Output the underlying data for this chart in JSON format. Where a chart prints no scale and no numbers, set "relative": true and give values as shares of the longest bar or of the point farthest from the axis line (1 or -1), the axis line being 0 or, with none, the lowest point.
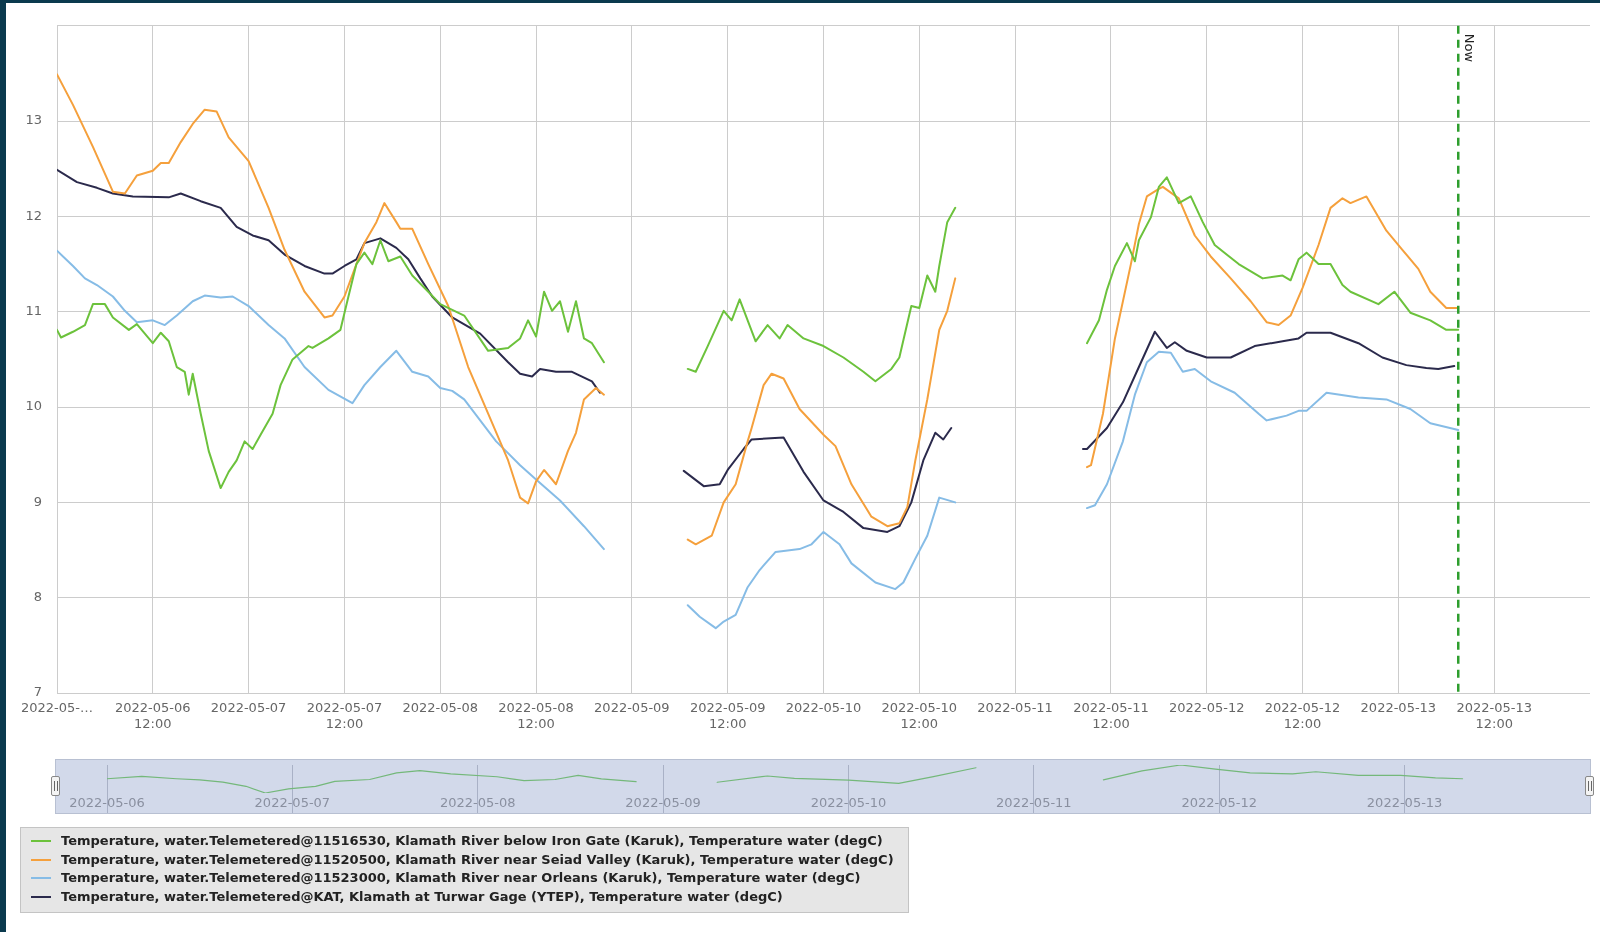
{
  "chart_data": [
    {
      "type": "line",
      "xlim": [
        "2022-05-06T00:00",
        "2022-05-14T00:00"
      ],
      "ylim": [
        7,
        14
      ],
      "xticks": [
        {
          "value": "2022-05-06T00:00",
          "label": "2022-05-…"
        },
        {
          "value": "2022-05-06T12:00",
          "label": "2022-05-06 12:00"
        },
        {
          "value": "2022-05-07T00:00",
          "label": "2022-05-07"
        },
        {
          "value": "2022-05-07T12:00",
          "label": "2022-05-07 12:00"
        },
        {
          "value": "2022-05-08T00:00",
          "label": "2022-05-08"
        },
        {
          "value": "2022-05-08T12:00",
          "label": "2022-05-08 12:00"
        },
        {
          "value": "2022-05-09T00:00",
          "label": "2022-05-09"
        },
        {
          "value": "2022-05-09T12:00",
          "label": "2022-05-09 12:00"
        },
        {
          "value": "2022-05-10T00:00",
          "label": "2022-05-10"
        },
        {
          "value": "2022-05-10T12:00",
          "label": "2022-05-10 12:00"
        },
        {
          "value": "2022-05-11T00:00",
          "label": "2022-05-11"
        },
        {
          "value": "2022-05-11T12:00",
          "label": "2022-05-11 12:00"
        },
        {
          "value": "2022-05-12T00:00",
          "label": "2022-05-12"
        },
        {
          "value": "2022-05-12T12:00",
          "label": "2022-05-12 12:00"
        },
        {
          "value": "2022-05-13T00:00",
          "label": "2022-05-13"
        },
        {
          "value": "2022-05-13T12:00",
          "label": "2022-05-13 12:00"
        }
      ],
      "yticks": [
        7,
        8,
        9,
        10,
        11,
        12,
        13,
        {
          "value": 14,
          "label": null
        }
      ],
      "grid": true,
      "legend": "bottom",
      "ref_lines": [
        {
          "axis": "x",
          "value": "2022-05-13T07:30",
          "label": "Now",
          "color": "#2e9e2e",
          "line_style": "dashed"
        }
      ],
      "series": [
        {
          "name": "Temperature, water.Telemetered@11516530, Klamath River below Iron Gate (Karuk), Temperature water (degC)",
          "color": "#6cc23c",
          "x": [
            "2022-05-06T00:00",
            "2022-05-06T00:30",
            "2022-05-06T02:00",
            "2022-05-06T03:30",
            "2022-05-06T04:30",
            "2022-05-06T06:00",
            "2022-05-06T07:00",
            "2022-05-06T09:00",
            "2022-05-06T10:00",
            "2022-05-06T11:00",
            "2022-05-06T12:00",
            "2022-05-06T13:00",
            "2022-05-06T14:00",
            "2022-05-06T15:00",
            "2022-05-06T16:00",
            "2022-05-06T16:30",
            "2022-05-06T17:00",
            "2022-05-06T18:00",
            "2022-05-06T19:00",
            "2022-05-06T20:30",
            "2022-05-06T21:30",
            "2022-05-06T22:30",
            "2022-05-06T23:30",
            "2022-05-07T00:30",
            "2022-05-07T01:30",
            "2022-05-07T03:00",
            "2022-05-07T04:00",
            "2022-05-07T05:30",
            "2022-05-07T07:30",
            "2022-05-07T08:00",
            "2022-05-07T10:00",
            "2022-05-07T11:30",
            "2022-05-07T12:30",
            "2022-05-07T13:30",
            "2022-05-07T14:30",
            "2022-05-07T15:30",
            "2022-05-07T16:30",
            "2022-05-07T17:30",
            "2022-05-07T19:00",
            "2022-05-07T20:30",
            "2022-05-07T22:30",
            "2022-05-08T00:00",
            "2022-05-08T01:30",
            "2022-05-08T03:00",
            "2022-05-08T06:00",
            "2022-05-08T08:30",
            "2022-05-08T10:00",
            "2022-05-08T11:00",
            "2022-05-08T12:00",
            "2022-05-08T13:00",
            "2022-05-08T14:00",
            "2022-05-08T15:00",
            "2022-05-08T16:00",
            "2022-05-08T17:00",
            "2022-05-08T18:00",
            "2022-05-08T19:00",
            "2022-05-08T20:30",
            "2022-05-09T00:00",
            "2022-05-09T07:00",
            "2022-05-09T08:00",
            "2022-05-09T09:30",
            "2022-05-09T11:30",
            "2022-05-09T12:30",
            "2022-05-09T13:30",
            "2022-05-09T15:30",
            "2022-05-09T17:00",
            "2022-05-09T18:30",
            "2022-05-09T19:30",
            "2022-05-09T21:30",
            "2022-05-10T00:00",
            "2022-05-10T02:30",
            "2022-05-10T05:00",
            "2022-05-10T06:30",
            "2022-05-10T08:30",
            "2022-05-10T09:30",
            "2022-05-10T11:00",
            "2022-05-10T12:00",
            "2022-05-10T13:00",
            "2022-05-10T14:00",
            "2022-05-10T14:30",
            "2022-05-10T15:30",
            "2022-05-10T16:30",
            "2022-05-11T00:00",
            "2022-05-11T09:00",
            "2022-05-11T10:30",
            "2022-05-11T11:30",
            "2022-05-11T12:30",
            "2022-05-11T14:00",
            "2022-05-11T15:00",
            "2022-05-11T15:30",
            "2022-05-11T17:00",
            "2022-05-11T18:00",
            "2022-05-11T19:00",
            "2022-05-11T20:30",
            "2022-05-11T22:00",
            "2022-05-11T23:30",
            "2022-05-12T01:00",
            "2022-05-12T04:00",
            "2022-05-12T07:00",
            "2022-05-12T09:30",
            "2022-05-12T10:30",
            "2022-05-12T11:30",
            "2022-05-12T12:30",
            "2022-05-12T14:00",
            "2022-05-12T15:30",
            "2022-05-12T17:00",
            "2022-05-12T18:00",
            "2022-05-12T21:30",
            "2022-05-12T23:30",
            "2022-05-13T01:30",
            "2022-05-13T04:00",
            "2022-05-13T06:00",
            "2022-05-13T07:30"
          ],
          "values": [
            10.81,
            10.73,
            10.79,
            10.86,
            11.08,
            11.08,
            10.94,
            10.81,
            10.87,
            10.77,
            10.67,
            10.78,
            10.69,
            10.42,
            10.37,
            10.13,
            10.35,
            9.93,
            9.54,
            9.15,
            9.32,
            9.44,
            9.64,
            9.56,
            9.71,
            9.93,
            10.23,
            10.5,
            10.64,
            10.62,
            10.72,
            10.81,
            11.16,
            11.5,
            11.62,
            11.5,
            11.75,
            11.53,
            11.58,
            11.38,
            11.21,
            11.08,
            11.02,
            10.96,
            10.59,
            10.62,
            10.72,
            10.91,
            10.74,
            11.21,
            11.01,
            11.11,
            10.79,
            11.11,
            10.72,
            10.67,
            10.47,
            null,
            10.4,
            10.37,
            10.64,
            11.01,
            10.91,
            11.13,
            10.69,
            10.86,
            10.72,
            10.86,
            10.72,
            10.64,
            10.52,
            10.37,
            10.27,
            10.4,
            10.52,
            11.06,
            11.04,
            11.38,
            11.21,
            11.48,
            11.94,
            12.09,
            null,
            10.67,
            10.91,
            11.23,
            11.48,
            11.72,
            11.53,
            11.75,
            11.99,
            12.31,
            12.41,
            12.14,
            12.21,
            11.94,
            11.7,
            11.5,
            11.35,
            11.38,
            11.33,
            11.55,
            11.62,
            11.5,
            11.5,
            11.28,
            11.21,
            11.08,
            11.21,
            10.99,
            10.91,
            10.81,
            10.81
          ]
        },
        {
          "name": "Temperature, water.Telemetered@11520500, Klamath River near Seiad Valley (Karuk), Temperature water (degC)",
          "color": "#f5a03c",
          "x": [
            "2022-05-06T00:00",
            "2022-05-06T02:00",
            "2022-05-06T04:30",
            "2022-05-06T07:00",
            "2022-05-06T08:30",
            "2022-05-06T10:00",
            "2022-05-06T12:00",
            "2022-05-06T13:00",
            "2022-05-06T14:00",
            "2022-05-06T15:30",
            "2022-05-06T17:00",
            "2022-05-06T18:30",
            "2022-05-06T20:00",
            "2022-05-06T21:30",
            "2022-05-07T00:00",
            "2022-05-07T02:30",
            "2022-05-07T04:30",
            "2022-05-07T07:00",
            "2022-05-07T09:30",
            "2022-05-07T10:30",
            "2022-05-07T12:00",
            "2022-05-07T13:30",
            "2022-05-07T14:30",
            "2022-05-07T16:00",
            "2022-05-07T17:00",
            "2022-05-07T18:30",
            "2022-05-07T19:00",
            "2022-05-07T20:30",
            "2022-05-07T22:30",
            "2022-05-08T01:00",
            "2022-05-08T03:30",
            "2022-05-08T06:00",
            "2022-05-08T08:30",
            "2022-05-08T10:00",
            "2022-05-08T11:00",
            "2022-05-08T12:00",
            "2022-05-08T13:00",
            "2022-05-08T14:30",
            "2022-05-08T16:00",
            "2022-05-08T17:00",
            "2022-05-08T18:00",
            "2022-05-08T19:30",
            "2022-05-08T20:30",
            "2022-05-09T00:00",
            "2022-05-09T07:00",
            "2022-05-09T08:00",
            "2022-05-09T10:00",
            "2022-05-09T11:30",
            "2022-05-09T13:00",
            "2022-05-09T14:30",
            "2022-05-09T15:00",
            "2022-05-09T16:30",
            "2022-05-09T17:30",
            "2022-05-09T19:00",
            "2022-05-09T21:00",
            "2022-05-10T00:00",
            "2022-05-10T01:30",
            "2022-05-10T03:30",
            "2022-05-10T06:00",
            "2022-05-10T08:00",
            "2022-05-10T09:30",
            "2022-05-10T10:30",
            "2022-05-10T11:30",
            "2022-05-10T13:00",
            "2022-05-10T14:30",
            "2022-05-10T15:30",
            "2022-05-10T16:30",
            "2022-05-11T00:00",
            "2022-05-11T09:00",
            "2022-05-11T09:30",
            "2022-05-11T11:00",
            "2022-05-11T12:30",
            "2022-05-11T14:30",
            "2022-05-11T15:30",
            "2022-05-11T16:30",
            "2022-05-11T18:00",
            "2022-05-11T18:30",
            "2022-05-11T20:30",
            "2022-05-11T22:30",
            "2022-05-12T00:30",
            "2022-05-12T03:00",
            "2022-05-12T05:30",
            "2022-05-12T07:30",
            "2022-05-12T09:00",
            "2022-05-12T10:30",
            "2022-05-12T12:00",
            "2022-05-12T14:00",
            "2022-05-12T15:30",
            "2022-05-12T17:00",
            "2022-05-12T18:00",
            "2022-05-12T20:00",
            "2022-05-12T22:30",
            "2022-05-13T00:30",
            "2022-05-13T02:30",
            "2022-05-13T04:00",
            "2022-05-13T06:00",
            "2022-05-13T07:30"
          ],
          "values": [
            13.49,
            13.17,
            12.73,
            12.26,
            12.24,
            12.43,
            12.48,
            12.56,
            12.56,
            12.78,
            12.97,
            13.12,
            13.1,
            12.83,
            12.58,
            12.09,
            11.65,
            11.21,
            10.94,
            10.96,
            11.16,
            11.5,
            11.72,
            11.94,
            12.14,
            11.94,
            11.87,
            11.87,
            11.5,
            11.06,
            10.42,
            9.93,
            9.44,
            9.05,
            8.99,
            9.22,
            9.34,
            9.19,
            9.54,
            9.73,
            10.08,
            10.2,
            10.13,
            null,
            8.61,
            8.56,
            8.65,
            9,
            9.19,
            9.64,
            9.78,
            10.23,
            10.35,
            10.3,
            9.98,
            9.71,
            9.59,
            9.19,
            8.85,
            8.75,
            8.78,
            8.95,
            9.44,
            10.08,
            10.81,
            11.01,
            11.35,
            null,
            9.37,
            9.39,
            9.93,
            10.72,
            11.5,
            11.92,
            12.21,
            12.29,
            12.31,
            12.19,
            11.8,
            11.58,
            11.35,
            11.11,
            10.89,
            10.86,
            10.96,
            11.25,
            11.7,
            12.09,
            12.19,
            12.14,
            12.21,
            11.85,
            11.65,
            11.45,
            11.21,
            11.04,
            11.04
          ]
        },
        {
          "name": "Temperature, water.Telemetered@11523000, Klamath River near Orleans (Karuk), Temperature water (degC)",
          "color": "#86bce6",
          "x": [
            "2022-05-06T00:00",
            "2022-05-06T02:00",
            "2022-05-06T03:30",
            "2022-05-06T05:00",
            "2022-05-06T07:00",
            "2022-05-06T08:30",
            "2022-05-06T10:00",
            "2022-05-06T12:00",
            "2022-05-06T13:30",
            "2022-05-06T15:00",
            "2022-05-06T17:00",
            "2022-05-06T18:30",
            "2022-05-06T20:30",
            "2022-05-06T22:00",
            "2022-05-07T00:00",
            "2022-05-07T02:30",
            "2022-05-07T04:30",
            "2022-05-07T07:00",
            "2022-05-07T10:00",
            "2022-05-07T13:00",
            "2022-05-07T14:30",
            "2022-05-07T16:30",
            "2022-05-07T18:30",
            "2022-05-07T20:30",
            "2022-05-07T22:30",
            "2022-05-08T00:00",
            "2022-05-08T01:30",
            "2022-05-08T03:00",
            "2022-05-08T07:00",
            "2022-05-08T10:00",
            "2022-05-08T12:00",
            "2022-05-08T15:00",
            "2022-05-08T18:00",
            "2022-05-08T20:30",
            "2022-05-09T00:00",
            "2022-05-09T07:00",
            "2022-05-09T08:30",
            "2022-05-09T10:30",
            "2022-05-09T11:30",
            "2022-05-09T13:00",
            "2022-05-09T14:30",
            "2022-05-09T16:00",
            "2022-05-09T18:00",
            "2022-05-09T21:00",
            "2022-05-09T22:30",
            "2022-05-10T00:00",
            "2022-05-10T02:00",
            "2022-05-10T03:30",
            "2022-05-10T06:30",
            "2022-05-10T09:00",
            "2022-05-10T10:00",
            "2022-05-10T11:30",
            "2022-05-10T13:00",
            "2022-05-10T14:30",
            "2022-05-10T16:30",
            "2022-05-11T00:00",
            "2022-05-11T09:00",
            "2022-05-11T10:00",
            "2022-05-11T11:30",
            "2022-05-11T13:30",
            "2022-05-11T15:00",
            "2022-05-11T16:30",
            "2022-05-11T18:00",
            "2022-05-11T19:30",
            "2022-05-11T21:00",
            "2022-05-11T22:30",
            "2022-05-12T00:30",
            "2022-05-12T03:30",
            "2022-05-12T06:30",
            "2022-05-12T07:30",
            "2022-05-12T10:00",
            "2022-05-12T11:30",
            "2022-05-12T12:30",
            "2022-05-12T15:00",
            "2022-05-12T19:00",
            "2022-05-12T22:30",
            "2022-05-13T01:30",
            "2022-05-13T04:00",
            "2022-05-13T07:30"
          ],
          "values": [
            11.64,
            11.48,
            11.35,
            11.28,
            11.16,
            11.01,
            10.89,
            10.91,
            10.86,
            10.96,
            11.11,
            11.17,
            11.15,
            11.16,
            11.06,
            10.86,
            10.72,
            10.42,
            10.18,
            10.04,
            10.23,
            10.42,
            10.59,
            10.37,
            10.32,
            10.2,
            10.17,
            10.08,
            9.64,
            9.39,
            9.24,
            9.02,
            8.75,
            8.51,
            null,
            7.92,
            7.8,
            7.68,
            7.75,
            7.82,
            8.11,
            8.29,
            8.48,
            8.51,
            8.56,
            8.69,
            8.56,
            8.36,
            8.16,
            8.09,
            8.16,
            8.41,
            8.65,
            9.05,
            9,
            null,
            8.94,
            8.97,
            9.19,
            9.64,
            10.13,
            10.47,
            10.58,
            10.57,
            10.37,
            10.4,
            10.27,
            10.15,
            9.93,
            9.86,
            9.91,
            9.96,
            9.96,
            10.15,
            10.1,
            10.08,
            9.98,
            9.83,
            9.76
          ]
        },
        {
          "name": "Temperature, water.Telemetered@KAT, Klamath at Turwar Gage (YTEP), Temperature water (degC)",
          "color": "#2b2a4c",
          "x": [
            "2022-05-06T00:00",
            "2022-05-06T02:30",
            "2022-05-06T05:00",
            "2022-05-06T07:00",
            "2022-05-06T09:30",
            "2022-05-06T14:00",
            "2022-05-06T15:30",
            "2022-05-06T18:00",
            "2022-05-06T20:30",
            "2022-05-06T22:30",
            "2022-05-07T00:30",
            "2022-05-07T02:30",
            "2022-05-07T04:30",
            "2022-05-07T07:00",
            "2022-05-07T09:30",
            "2022-05-07T10:30",
            "2022-05-07T12:00",
            "2022-05-07T13:30",
            "2022-05-07T14:30",
            "2022-05-07T16:30",
            "2022-05-07T18:30",
            "2022-05-07T20:00",
            "2022-05-07T21:30",
            "2022-05-07T23:00",
            "2022-05-08T01:30",
            "2022-05-08T05:00",
            "2022-05-08T08:30",
            "2022-05-08T10:00",
            "2022-05-08T11:30",
            "2022-05-08T12:30",
            "2022-05-08T14:30",
            "2022-05-08T16:30",
            "2022-05-08T19:00",
            "2022-05-08T20:00",
            "2022-05-09T00:00",
            "2022-05-09T06:30",
            "2022-05-09T09:00",
            "2022-05-09T11:00",
            "2022-05-09T12:00",
            "2022-05-09T14:00",
            "2022-05-09T15:00",
            "2022-05-09T19:00",
            "2022-05-09T21:30",
            "2022-05-10T00:00",
            "2022-05-10T02:30",
            "2022-05-10T05:00",
            "2022-05-10T08:00",
            "2022-05-10T09:30",
            "2022-05-10T11:00",
            "2022-05-10T12:30",
            "2022-05-10T14:00",
            "2022-05-10T15:00",
            "2022-05-10T16:00",
            "2022-05-11T00:00",
            "2022-05-11T08:30",
            "2022-05-11T09:00",
            "2022-05-11T11:30",
            "2022-05-11T13:30",
            "2022-05-11T15:30",
            "2022-05-11T17:30",
            "2022-05-11T19:00",
            "2022-05-11T20:00",
            "2022-05-11T21:30",
            "2022-05-12T00:00",
            "2022-05-12T03:00",
            "2022-05-12T06:00",
            "2022-05-12T09:30",
            "2022-05-12T11:30",
            "2022-05-12T12:30",
            "2022-05-12T15:30",
            "2022-05-12T19:00",
            "2022-05-12T22:00",
            "2022-05-13T01:00",
            "2022-05-13T03:30",
            "2022-05-13T05:00",
            "2022-05-13T07:00"
          ],
          "values": [
            12.49,
            12.36,
            12.3,
            12.24,
            12.21,
            12.2,
            12.24,
            12.16,
            12.09,
            11.89,
            11.8,
            11.75,
            11.6,
            11.48,
            11.4,
            11.4,
            11.48,
            11.55,
            11.72,
            11.77,
            11.67,
            11.55,
            11.35,
            11.16,
            10.94,
            10.77,
            10.47,
            10.35,
            10.32,
            10.4,
            10.37,
            10.37,
            10.27,
            10.15,
            null,
            9.33,
            9.17,
            9.19,
            9.34,
            9.56,
            9.66,
            9.68,
            9.32,
            9.02,
            8.9,
            8.73,
            8.69,
            8.75,
            9,
            9.44,
            9.73,
            9.66,
            9.78,
            null,
            9.56,
            9.56,
            9.78,
            10.05,
            10.42,
            10.79,
            10.62,
            10.68,
            10.59,
            10.52,
            10.52,
            10.64,
            10.69,
            10.72,
            10.78,
            10.78,
            10.67,
            10.52,
            10.44,
            10.41,
            10.4,
            10.43
          ]
        }
      ]
    },
    {
      "type": "line",
      "relative": true,
      "xlim": [
        "2022-05-06T00:00",
        "2022-05-14T00:00"
      ],
      "xticks": [
        {
          "value": "2022-05-06T00:00",
          "label": "2022-05-06"
        },
        {
          "value": "2022-05-07T00:00",
          "label": "2022-05-07"
        },
        {
          "value": "2022-05-08T00:00",
          "label": "2022-05-08"
        },
        {
          "value": "2022-05-09T00:00",
          "label": "2022-05-09"
        },
        {
          "value": "2022-05-10T00:00",
          "label": "2022-05-10"
        },
        {
          "value": "2022-05-11T00:00",
          "label": "2022-05-11"
        },
        {
          "value": "2022-05-12T00:00",
          "label": "2022-05-12"
        },
        {
          "value": "2022-05-13T00:00",
          "label": "2022-05-13"
        }
      ],
      "tick_labels": "x",
      "grid": "x",
      "series": [
        {
          "color": "#74b87a",
          "x": [
            "2022-05-06T00:00",
            "2022-05-06T04:30",
            "2022-05-06T09:00",
            "2022-05-06T12:00",
            "2022-05-06T15:00",
            "2022-05-06T18:00",
            "2022-05-06T20:30",
            "2022-05-06T23:30",
            "2022-05-07T03:00",
            "2022-05-07T05:30",
            "2022-05-07T10:00",
            "2022-05-07T13:30",
            "2022-05-07T16:30",
            "2022-05-07T20:30",
            "2022-05-08T02:30",
            "2022-05-08T06:00",
            "2022-05-08T10:00",
            "2022-05-08T13:00",
            "2022-05-08T16:00",
            "2022-05-08T20:30",
            "2022-05-09T00:00",
            "2022-05-09T07:00",
            "2022-05-09T13:30",
            "2022-05-09T17:00",
            "2022-05-10T00:00",
            "2022-05-10T06:30",
            "2022-05-10T11:00",
            "2022-05-10T16:30",
            "2022-05-11T00:00",
            "2022-05-11T09:00",
            "2022-05-11T14:00",
            "2022-05-11T19:00",
            "2022-05-11T23:30",
            "2022-05-12T04:00",
            "2022-05-12T09:30",
            "2022-05-12T12:30",
            "2022-05-12T18:00",
            "2022-05-12T23:30",
            "2022-05-13T04:00",
            "2022-05-13T07:30"
          ],
          "values": [
            0.509,
            0.592,
            0.509,
            0.466,
            0.39,
            0.239,
            0,
            0.15,
            0.239,
            0.414,
            0.482,
            0.721,
            0.798,
            0.684,
            0.58,
            0.442,
            0.482,
            0.632,
            0.503,
            0.405,
            null,
            0.383,
            0.607,
            0.525,
            0.457,
            0.344,
            0.586,
            0.902,
            null,
            0.466,
            0.788,
            1,
            0.856,
            0.721,
            0.684,
            0.758,
            0.632,
            0.632,
            0.54,
            0.509
          ]
        }
      ]
    }
  ]
}
